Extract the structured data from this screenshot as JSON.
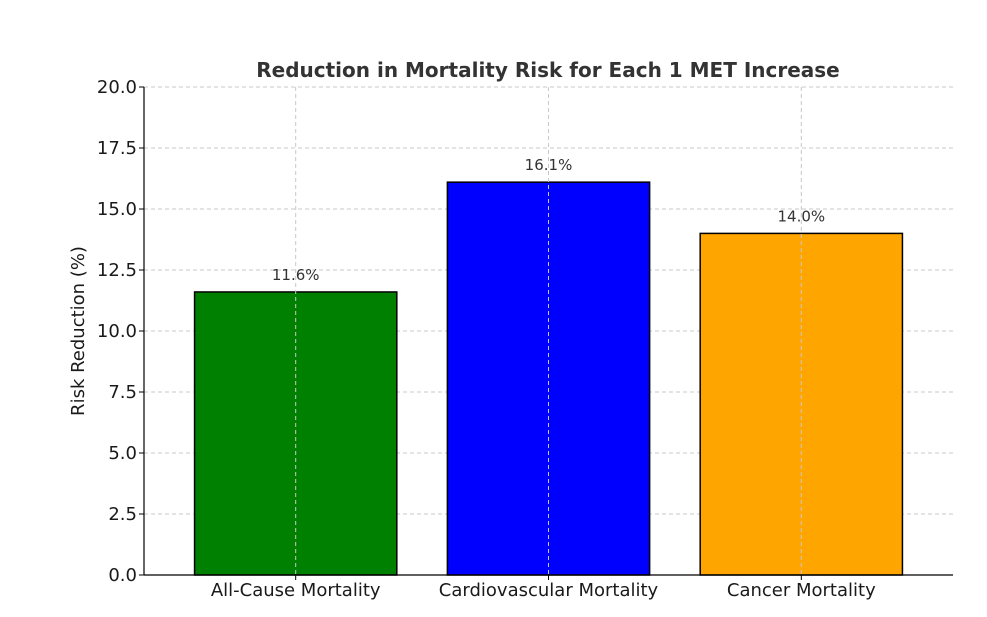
{
  "chart_data": {
    "type": "bar",
    "title": "Reduction in Mortality Risk for Each 1 MET Increase",
    "xlabel": "",
    "ylabel": "Risk Reduction (%)",
    "categories": [
      "All-Cause Mortality",
      "Cardiovascular Mortality",
      "Cancer Mortality"
    ],
    "values": [
      11.6,
      16.1,
      14.0
    ],
    "data_labels": [
      "11.6%",
      "16.1%",
      "14.0%"
    ],
    "colors": [
      "#008000",
      "#0000ff",
      "#ffa500"
    ],
    "ylim": [
      0,
      20
    ],
    "yticks": [
      0,
      2.5,
      5,
      7.5,
      10,
      12.5,
      15,
      17.5,
      20
    ],
    "ytick_labels": [
      "0.0",
      "2.5",
      "5.0",
      "7.5",
      "10.0",
      "12.5",
      "15.0",
      "17.5",
      "20.0"
    ],
    "grid": true
  }
}
